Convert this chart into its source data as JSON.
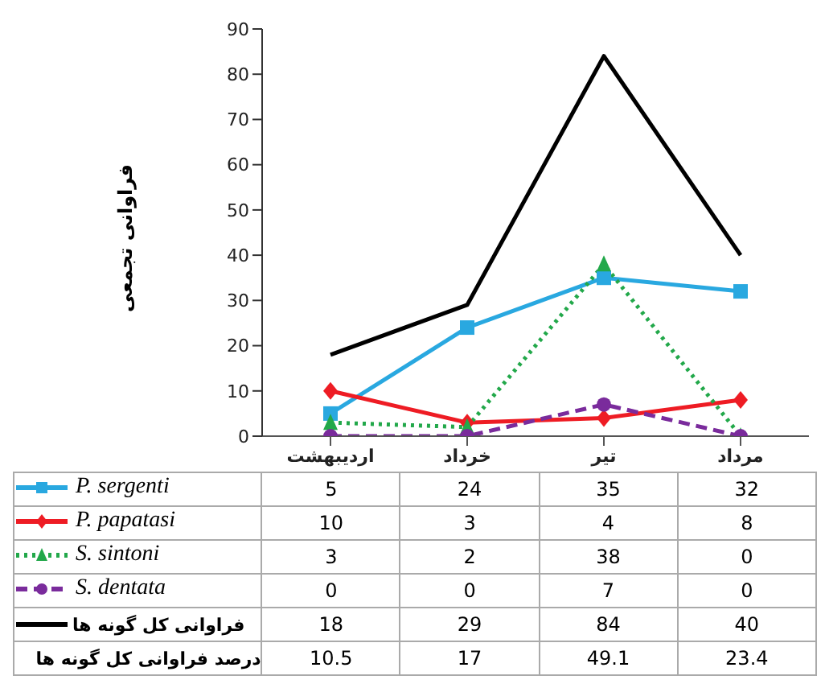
{
  "chart_data": {
    "type": "line",
    "ylabel": "فراوانی تجمعی",
    "categories": [
      "اردیبهشت",
      "خرداد",
      "تیر",
      "مرداد"
    ],
    "ylim": [
      0,
      90
    ],
    "yticks": [
      0,
      10,
      20,
      30,
      40,
      50,
      60,
      70,
      80,
      90
    ],
    "grid": false,
    "legend": "bottom",
    "data_labels": true,
    "series": [
      {
        "name": "P. sergenti",
        "color": "#29a8e0",
        "marker": "square",
        "line_style": "solid",
        "values": [
          5,
          24,
          35,
          32
        ]
      },
      {
        "name": "P. papatasi",
        "color": "#ee1c24",
        "marker": "diamond",
        "line_style": "solid",
        "values": [
          10,
          3,
          4,
          8
        ]
      },
      {
        "name": "S. sintoni",
        "color": "#22a84a",
        "marker": "triangle",
        "line_style": "dotted",
        "values": [
          3,
          2,
          38,
          0
        ]
      },
      {
        "name": "S. dentata",
        "color": "#7a2b9c",
        "marker": "circle",
        "line_style": "dashed",
        "values": [
          0,
          0,
          7,
          0
        ]
      },
      {
        "name": "فراوانی کل گونه ها",
        "color": "#000000",
        "marker": "none",
        "line_style": "solid",
        "values": [
          18,
          29,
          84,
          40
        ]
      }
    ],
    "annotations": [
      "درصد فراوانی کل گونه ها",
      "10.5",
      "17",
      "49.1",
      "23.4"
    ]
  }
}
